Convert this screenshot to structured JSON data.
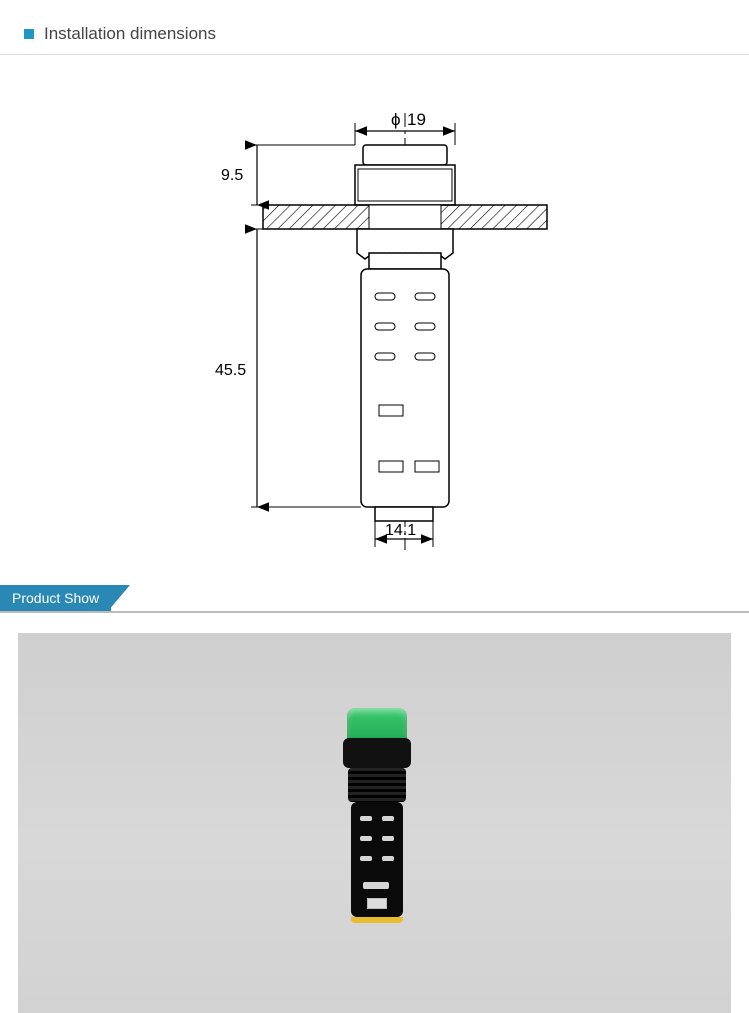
{
  "section1": {
    "title": "Installation dimensions"
  },
  "diagram": {
    "dim_top": "19",
    "dim_top_symbol": "ϕ",
    "dim_left_upper": "9.5",
    "dim_left_lower": "45.5",
    "dim_bottom": "14.1",
    "stroke": "#000000",
    "bg": "#ffffff",
    "hatch": "#000000"
  },
  "banner": {
    "label": "Product Show"
  },
  "photo": {
    "cap_color": "#2ab85e",
    "body_color": "#0a0a0a",
    "base_color": "#e8bc2e"
  }
}
